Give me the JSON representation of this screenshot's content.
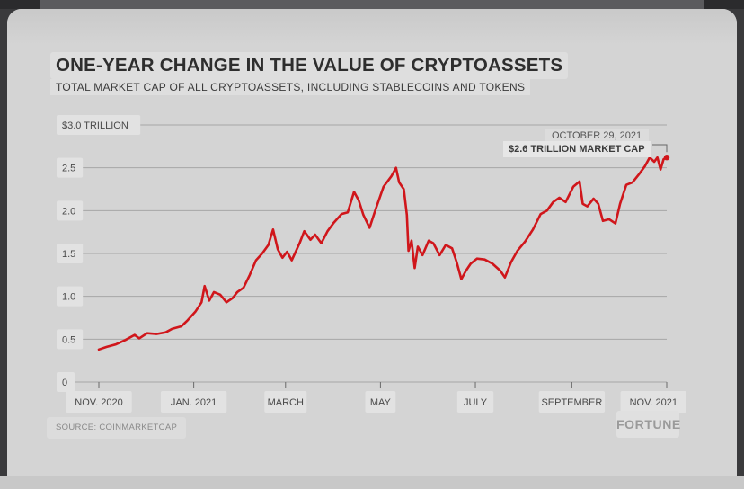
{
  "header": {
    "title": "ONE-YEAR CHANGE IN THE VALUE OF CRYPTOASSETS",
    "subtitle": "TOTAL MARKET CAP OF ALL CRYPTOASSETS, INCLUDING STABLECOINS AND TOKENS"
  },
  "footer": {
    "source": "SOURCE: COINMARKETCAP",
    "brand": "FORTUNE"
  },
  "annotation": {
    "date": "OCTOBER 29, 2021",
    "value": "$2.6 TRILLION MARKET CAP"
  },
  "colors": {
    "line": "#d0161b",
    "background": "#d4d4d4",
    "grid": "#a6a6a6"
  },
  "chart_data": {
    "type": "line",
    "title": "ONE-YEAR CHANGE IN THE VALUE OF CRYPTOASSETS",
    "subtitle": "TOTAL MARKET CAP OF ALL CRYPTOASSETS, INCLUDING STABLECOINS AND TOKENS",
    "xlabel": "",
    "ylabel": "",
    "y_ticks": [
      {
        "value": 0,
        "label": "0"
      },
      {
        "value": 0.5,
        "label": "0.5"
      },
      {
        "value": 1.0,
        "label": "1.0"
      },
      {
        "value": 1.5,
        "label": "1.5"
      },
      {
        "value": 2.0,
        "label": "2.0"
      },
      {
        "value": 2.5,
        "label": "2.5"
      },
      {
        "value": 3.0,
        "label": "$3.0 TRILLION"
      }
    ],
    "ylim": [
      0,
      3.0
    ],
    "xlim": [
      "2020-11-01",
      "2021-11-01"
    ],
    "x_ticks": [
      {
        "date": "2020-11-01",
        "label": "NOV. 2020"
      },
      {
        "date": "2021-01-01",
        "label": "JAN. 2021"
      },
      {
        "date": "2021-03-01",
        "label": "MARCH"
      },
      {
        "date": "2021-05-01",
        "label": "MAY"
      },
      {
        "date": "2021-07-01",
        "label": "JULY"
      },
      {
        "date": "2021-09-01",
        "label": "SEPTEMBER"
      },
      {
        "date": "2021-11-01",
        "label": "NOV. 2021"
      }
    ],
    "grid": true,
    "series": [
      {
        "points": [
          [
            "2020-11-01",
            0.38
          ],
          [
            "2020-11-06",
            0.41
          ],
          [
            "2020-11-12",
            0.44
          ],
          [
            "2020-11-18",
            0.49
          ],
          [
            "2020-11-24",
            0.55
          ],
          [
            "2020-11-27",
            0.51
          ],
          [
            "2020-12-02",
            0.57
          ],
          [
            "2020-12-08",
            0.56
          ],
          [
            "2020-12-14",
            0.58
          ],
          [
            "2020-12-18",
            0.62
          ],
          [
            "2020-12-24",
            0.65
          ],
          [
            "2020-12-28",
            0.72
          ],
          [
            "2021-01-02",
            0.82
          ],
          [
            "2021-01-06",
            0.93
          ],
          [
            "2021-01-08",
            1.12
          ],
          [
            "2021-01-11",
            0.95
          ],
          [
            "2021-01-14",
            1.05
          ],
          [
            "2021-01-18",
            1.02
          ],
          [
            "2021-01-22",
            0.93
          ],
          [
            "2021-01-26",
            0.98
          ],
          [
            "2021-01-29",
            1.05
          ],
          [
            "2021-02-02",
            1.1
          ],
          [
            "2021-02-06",
            1.25
          ],
          [
            "2021-02-10",
            1.42
          ],
          [
            "2021-02-14",
            1.5
          ],
          [
            "2021-02-18",
            1.6
          ],
          [
            "2021-02-21",
            1.78
          ],
          [
            "2021-02-24",
            1.55
          ],
          [
            "2021-02-27",
            1.45
          ],
          [
            "2021-03-02",
            1.52
          ],
          [
            "2021-03-05",
            1.42
          ],
          [
            "2021-03-10",
            1.62
          ],
          [
            "2021-03-13",
            1.76
          ],
          [
            "2021-03-17",
            1.66
          ],
          [
            "2021-03-20",
            1.72
          ],
          [
            "2021-03-24",
            1.62
          ],
          [
            "2021-03-28",
            1.76
          ],
          [
            "2021-04-01",
            1.86
          ],
          [
            "2021-04-06",
            1.96
          ],
          [
            "2021-04-10",
            1.98
          ],
          [
            "2021-04-14",
            2.22
          ],
          [
            "2021-04-17",
            2.12
          ],
          [
            "2021-04-20",
            1.95
          ],
          [
            "2021-04-24",
            1.8
          ],
          [
            "2021-04-28",
            2.02
          ],
          [
            "2021-05-03",
            2.28
          ],
          [
            "2021-05-08",
            2.4
          ],
          [
            "2021-05-11",
            2.5
          ],
          [
            "2021-05-13",
            2.33
          ],
          [
            "2021-05-16",
            2.25
          ],
          [
            "2021-05-18",
            1.95
          ],
          [
            "2021-05-19",
            1.53
          ],
          [
            "2021-05-21",
            1.65
          ],
          [
            "2021-05-23",
            1.33
          ],
          [
            "2021-05-25",
            1.58
          ],
          [
            "2021-05-28",
            1.48
          ],
          [
            "2021-06-01",
            1.65
          ],
          [
            "2021-06-04",
            1.62
          ],
          [
            "2021-06-08",
            1.48
          ],
          [
            "2021-06-12",
            1.6
          ],
          [
            "2021-06-16",
            1.56
          ],
          [
            "2021-06-19",
            1.4
          ],
          [
            "2021-06-22",
            1.2
          ],
          [
            "2021-06-25",
            1.3
          ],
          [
            "2021-06-28",
            1.38
          ],
          [
            "2021-07-02",
            1.44
          ],
          [
            "2021-07-07",
            1.43
          ],
          [
            "2021-07-12",
            1.38
          ],
          [
            "2021-07-17",
            1.3
          ],
          [
            "2021-07-20",
            1.22
          ],
          [
            "2021-07-24",
            1.4
          ],
          [
            "2021-07-28",
            1.53
          ],
          [
            "2021-08-02",
            1.64
          ],
          [
            "2021-08-07",
            1.78
          ],
          [
            "2021-08-12",
            1.96
          ],
          [
            "2021-08-16",
            2.0
          ],
          [
            "2021-08-20",
            2.1
          ],
          [
            "2021-08-24",
            2.15
          ],
          [
            "2021-08-28",
            2.1
          ],
          [
            "2021-09-02",
            2.28
          ],
          [
            "2021-09-06",
            2.34
          ],
          [
            "2021-09-08",
            2.08
          ],
          [
            "2021-09-11",
            2.05
          ],
          [
            "2021-09-15",
            2.14
          ],
          [
            "2021-09-18",
            2.08
          ],
          [
            "2021-09-21",
            1.88
          ],
          [
            "2021-09-25",
            1.9
          ],
          [
            "2021-09-29",
            1.85
          ],
          [
            "2021-10-02",
            2.08
          ],
          [
            "2021-10-06",
            2.3
          ],
          [
            "2021-10-10",
            2.33
          ],
          [
            "2021-10-14",
            2.42
          ],
          [
            "2021-10-18",
            2.52
          ],
          [
            "2021-10-21",
            2.62
          ],
          [
            "2021-10-24",
            2.57
          ],
          [
            "2021-10-26",
            2.62
          ],
          [
            "2021-10-28",
            2.48
          ],
          [
            "2021-10-30",
            2.6
          ],
          [
            "2021-11-01",
            2.62
          ]
        ]
      }
    ]
  }
}
